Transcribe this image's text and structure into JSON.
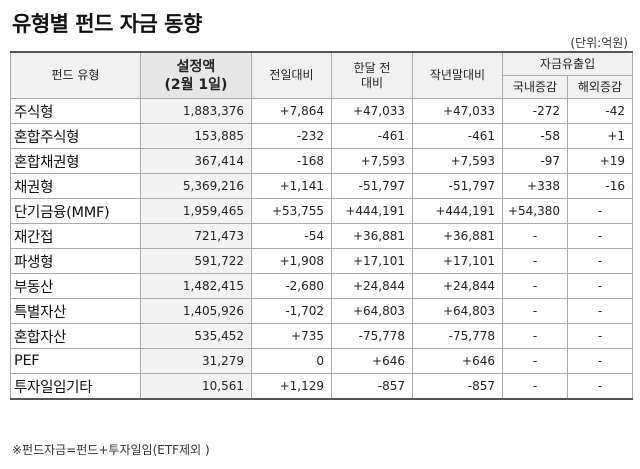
{
  "title": "유형별 펀드 자금 동향",
  "unit": "(단위:억원)",
  "headers": {
    "type": "펀드 유형",
    "base_line1": "설정액",
    "base_line2": "(2월 1일)",
    "prev_day": "전일대비",
    "month_line1": "한달 전",
    "month_line2": "대비",
    "year_end": "작년말대비",
    "flow": "자금유출입",
    "domestic": "국내증감",
    "overseas": "해외증감"
  },
  "rows": [
    {
      "name": "주식형",
      "base": "1,883,376",
      "prev": "+7,864",
      "month": "+47,033",
      "year": "+47,033",
      "dom": "-272",
      "ovs": "-42"
    },
    {
      "name": "혼합주식형",
      "base": "153,885",
      "prev": "-232",
      "month": "-461",
      "year": "-461",
      "dom": "-58",
      "ovs": "+1"
    },
    {
      "name": "혼합채권형",
      "base": "367,414",
      "prev": "-168",
      "month": "+7,593",
      "year": "+7,593",
      "dom": "-97",
      "ovs": "+19"
    },
    {
      "name": "채권형",
      "base": "5,369,216",
      "prev": "+1,141",
      "month": "-51,797",
      "year": "-51,797",
      "dom": "+338",
      "ovs": "-16"
    },
    {
      "name": "단기금융(MMF)",
      "base": "1,959,465",
      "prev": "+53,755",
      "month": "+444,191",
      "year": "+444,191",
      "dom": "+54,380",
      "ovs": "-"
    },
    {
      "name": "재간접",
      "base": "721,473",
      "prev": "-54",
      "month": "+36,881",
      "year": "+36,881",
      "dom": "-",
      "ovs": "-"
    },
    {
      "name": "파생형",
      "base": "591,722",
      "prev": "+1,908",
      "month": "+17,101",
      "year": "+17,101",
      "dom": "-",
      "ovs": "-"
    },
    {
      "name": "부동산",
      "base": "1,482,415",
      "prev": "-2,680",
      "month": "+24,844",
      "year": "+24,844",
      "dom": "-",
      "ovs": "-"
    },
    {
      "name": "특별자산",
      "base": "1,405,926",
      "prev": "-1,702",
      "month": "+64,803",
      "year": "+64,803",
      "dom": "-",
      "ovs": "-"
    },
    {
      "name": "혼합자산",
      "base": "535,452",
      "prev": "+735",
      "month": "-75,778",
      "year": "-75,778",
      "dom": "-",
      "ovs": "-"
    },
    {
      "name": "PEF",
      "base": "31,279",
      "prev": "0",
      "month": "+646",
      "year": "+646",
      "dom": "-",
      "ovs": "-"
    },
    {
      "name": "투자일임기타",
      "base": "10,561",
      "prev": "+1,129",
      "month": "-857",
      "year": "-857",
      "dom": "-",
      "ovs": "-"
    }
  ],
  "footnote": "※펀드자금=펀드+투자일임(ETF제외 )"
}
